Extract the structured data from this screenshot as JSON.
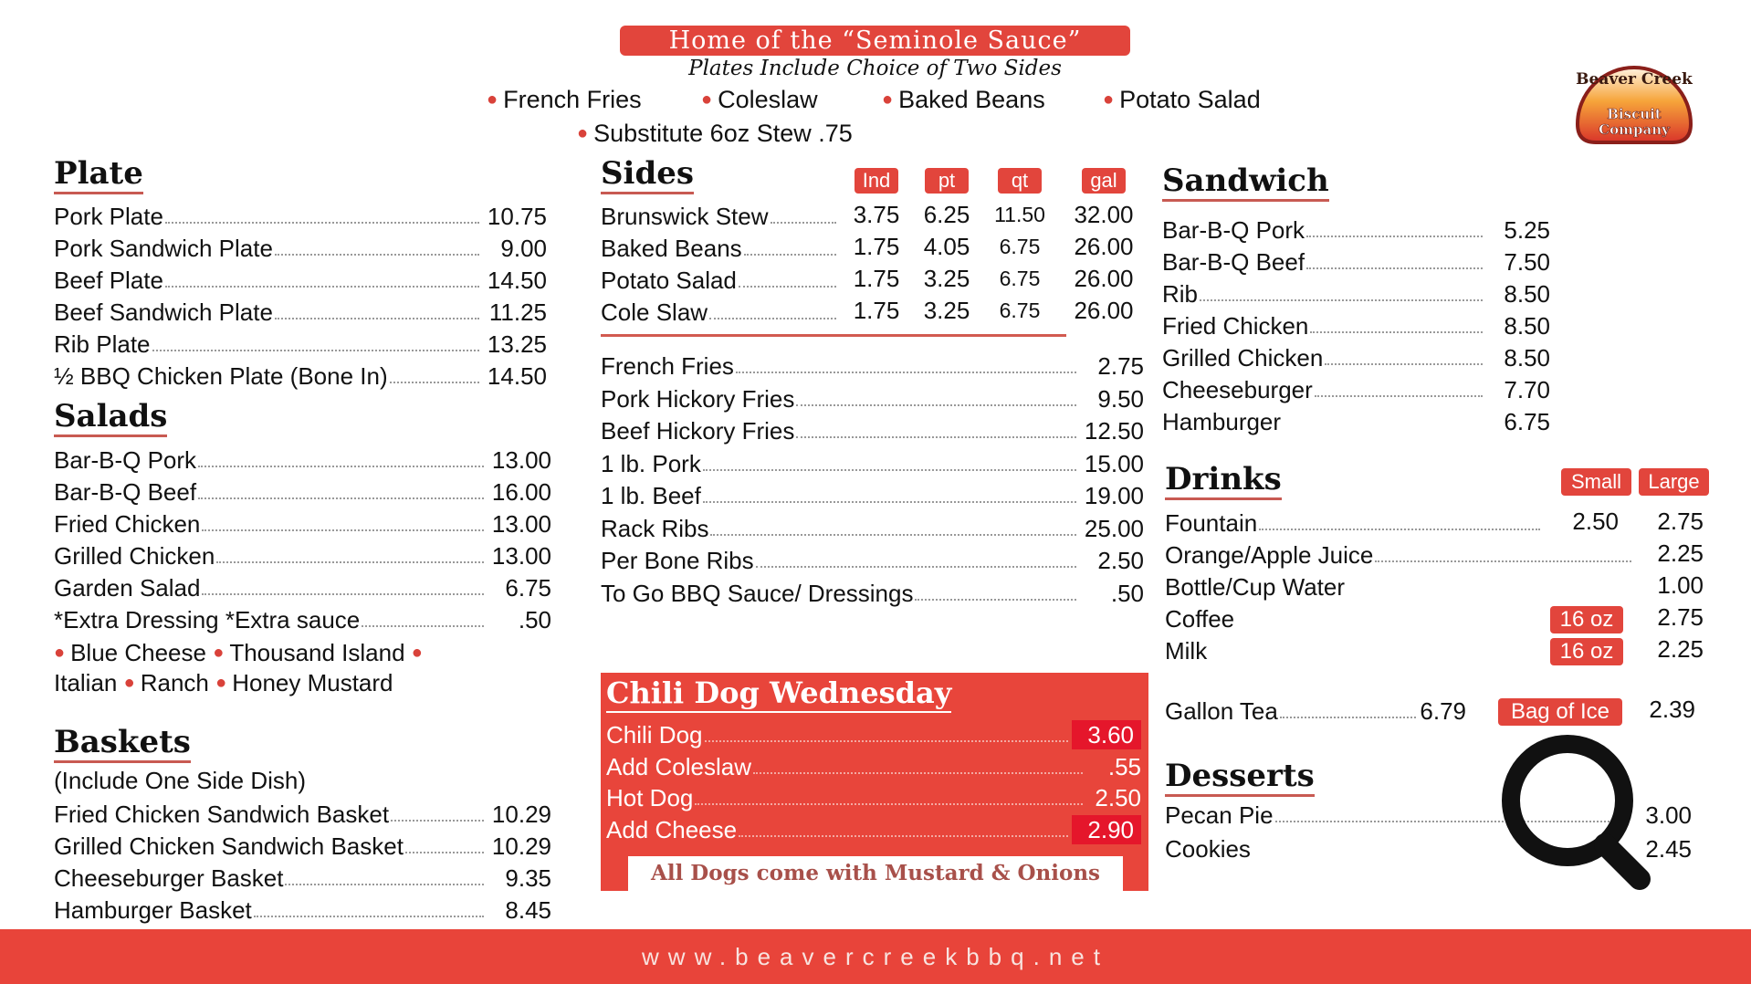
{
  "header": {
    "banner": "Home of the “Seminole Sauce”",
    "subtitle": "Plates Include Choice of Two Sides",
    "sides": [
      "French Fries",
      "Coleslaw",
      "Baked Beans",
      "Potato Salad"
    ],
    "substitute": "Substitute 6oz Stew .75"
  },
  "logo": {
    "line1": "Beaver Creek",
    "line2": "Biscuit",
    "line3": "Company"
  },
  "plate": {
    "title": "Plate",
    "items": [
      {
        "name": "Pork Plate",
        "price": "10.75"
      },
      {
        "name": "Pork Sandwich Plate",
        "price": "9.00"
      },
      {
        "name": "Beef Plate",
        "price": "14.50"
      },
      {
        "name": "Beef Sandwich Plate",
        "price": "11.25"
      },
      {
        "name": "Rib Plate",
        "price": "13.25"
      },
      {
        "name": "½ BBQ Chicken Plate (Bone In)",
        "price": "14.50"
      }
    ]
  },
  "salads": {
    "title": "Salads",
    "items": [
      {
        "name": "Bar-B-Q Pork",
        "price": "13.00"
      },
      {
        "name": "Bar-B-Q Beef",
        "price": "16.00"
      },
      {
        "name": "Fried Chicken",
        "price": "13.00"
      },
      {
        "name": "Grilled Chicken",
        "price": "13.00"
      },
      {
        "name": "Garden Salad",
        "price": "6.75"
      },
      {
        "name": "*Extra Dressing *Extra sauce",
        "price": ".50"
      }
    ],
    "dressings": [
      "Blue Cheese",
      "Thousand Island",
      "Italian",
      "Ranch",
      "Honey Mustard"
    ]
  },
  "baskets": {
    "title": "Baskets",
    "note": "(Include One Side Dish)",
    "items": [
      {
        "name": "Fried Chicken Sandwich Basket",
        "price": "10.29"
      },
      {
        "name": "Grilled Chicken Sandwich Basket",
        "price": "10.29"
      },
      {
        "name": "Cheeseburger Basket",
        "price": "9.35"
      },
      {
        "name": "Hamburger Basket",
        "price": "8.45"
      }
    ]
  },
  "sides": {
    "title": "Sides",
    "columns": [
      "Ind",
      "pt",
      "qt",
      "gal"
    ],
    "sized_items": [
      {
        "name": "Brunswick Stew",
        "prices": [
          "3.75",
          "6.25",
          "11.50",
          "32.00"
        ]
      },
      {
        "name": "Baked Beans",
        "prices": [
          "1.75",
          "4.05",
          "6.75",
          "26.00"
        ]
      },
      {
        "name": "Potato Salad",
        "prices": [
          "1.75",
          "3.25",
          "6.75",
          "26.00"
        ]
      },
      {
        "name": "Cole Slaw",
        "prices": [
          "1.75",
          "3.25",
          "6.75",
          "26.00"
        ]
      }
    ],
    "items": [
      {
        "name": "French Fries",
        "price": "2.75"
      },
      {
        "name": "Pork Hickory Fries",
        "price": "9.50"
      },
      {
        "name": "Beef Hickory Fries",
        "price": "12.50"
      },
      {
        "name": "1 lb. Pork",
        "price": "15.00"
      },
      {
        "name": "1 lb. Beef",
        "price": "19.00"
      },
      {
        "name": "Rack Ribs",
        "price": "25.00"
      },
      {
        "name": "Per Bone Ribs",
        "price": "2.50"
      },
      {
        "name": "To Go BBQ Sauce/ Dressings",
        "price": ".50"
      }
    ]
  },
  "chili": {
    "title": "Chili Dog Wednesday",
    "items": [
      {
        "name": "Chili Dog",
        "price": "3.60",
        "highlight": true
      },
      {
        "name": "Add Coleslaw",
        "price": ".55",
        "highlight": false
      },
      {
        "name": "Hot Dog",
        "price": "2.50",
        "highlight": false
      },
      {
        "name": "Add Cheese",
        "price": "2.90",
        "highlight": true
      }
    ],
    "note": "All Dogs come with Mustard & Onions"
  },
  "sandwich": {
    "title": "Sandwich",
    "items": [
      {
        "name": "Bar-B-Q Pork",
        "price": "5.25"
      },
      {
        "name": "Bar-B-Q Beef",
        "price": "7.50"
      },
      {
        "name": "Rib",
        "price": "8.50"
      },
      {
        "name": "Fried Chicken",
        "price": "8.50"
      },
      {
        "name": "Grilled Chicken",
        "price": "8.50"
      },
      {
        "name": "Cheeseburger",
        "price": "7.70"
      },
      {
        "name": "Hamburger",
        "price": "6.75"
      }
    ]
  },
  "drinks": {
    "title": "Drinks",
    "columns": [
      "Small",
      "Large"
    ],
    "items": [
      {
        "name": "Fountain",
        "small": "2.50",
        "large": "2.75"
      },
      {
        "name": "Orange/Apple Juice",
        "large": "2.25"
      },
      {
        "name": "Bottle/Cup Water",
        "large": "1.00"
      },
      {
        "name": "Coffee",
        "tag": "16 oz",
        "large": "2.75"
      },
      {
        "name": "Milk",
        "tag": "16 oz",
        "large": "2.25"
      }
    ],
    "gallon_tea": {
      "name": "Gallon Tea",
      "price": "6.79"
    },
    "bag_of_ice": {
      "name": "Bag of Ice",
      "price": "2.39"
    }
  },
  "desserts": {
    "title": "Desserts",
    "items": [
      {
        "name": "Pecan Pie",
        "price": "3.00"
      },
      {
        "name": "Cookies",
        "price": "2.45"
      }
    ]
  },
  "footer": {
    "url": "www.beavercreekbbq.net"
  },
  "overlay": {
    "icon": "magnifier-icon"
  },
  "colors": {
    "accent": "#e2453c",
    "highlight": "#e5162b",
    "footer": "#e8443a",
    "text": "#111111"
  }
}
